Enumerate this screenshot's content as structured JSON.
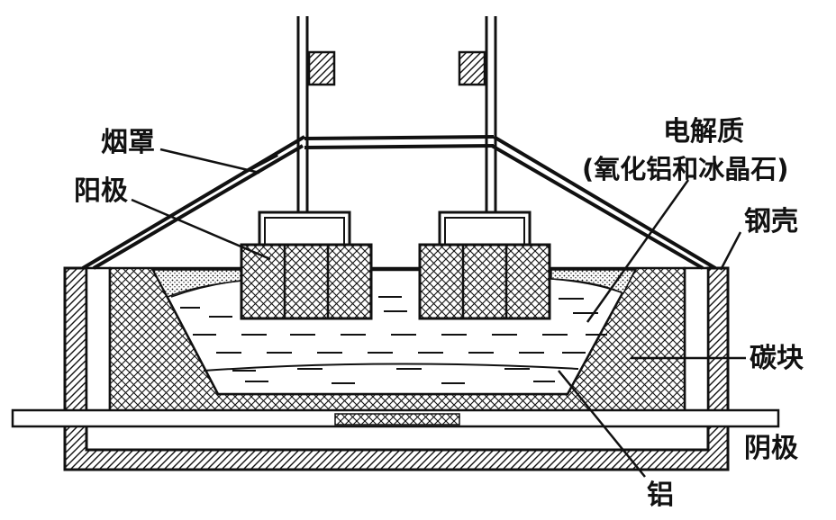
{
  "labels": {
    "hood": "烟罩",
    "anode": "阳极",
    "electrolyte": "电解质",
    "electrolyte_composition": "(氧化铝和冰晶石)",
    "steel_shell": "钢壳",
    "carbon_block": "碳块",
    "cathode": "阴极",
    "aluminum": "铝"
  },
  "colors": {
    "ink": "#111111",
    "paper": "#ffffff"
  }
}
